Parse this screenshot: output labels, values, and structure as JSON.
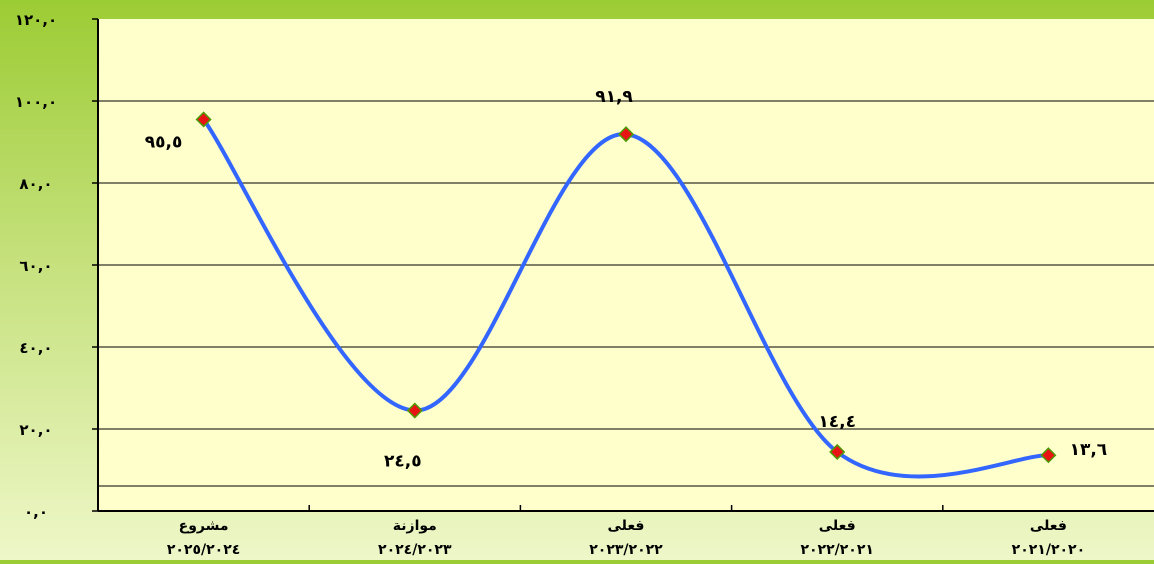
{
  "chart_data": {
    "type": "line",
    "categories": [
      [
        "مشروع",
        "٢٠٢٥/٢٠٢٤"
      ],
      [
        "موازنة",
        "٢٠٢٤/٢٠٢٣"
      ],
      [
        "فعلى",
        "٢٠٢٣/٢٠٢٢"
      ],
      [
        "فعلى",
        "٢٠٢٢/٢٠٢١"
      ],
      [
        "فعلى",
        "٢٠٢١/٢٠٢٠"
      ]
    ],
    "values": [
      95.5,
      24.5,
      91.9,
      14.4,
      13.6
    ],
    "data_labels": [
      "٩٥,٥",
      "٢٤,٥",
      "٩١,٩",
      "١٤,٤",
      "١٣,٦"
    ],
    "ylim": [
      0,
      120
    ],
    "yticks": [
      0,
      20,
      40,
      60,
      80,
      100,
      120
    ],
    "ytick_labels": [
      "٠,٠",
      "٢٠,٠",
      "٤٠,٠",
      "٦٠,٠",
      "٨٠,٠",
      "١٠٠,٠",
      "١٢٠,٠"
    ],
    "grid": true,
    "smooth": true,
    "colors": {
      "line": "#3366ff",
      "marker_fill": "#e81414",
      "marker_stroke": "#4e9a06",
      "plot_background": "#ffffcc",
      "gridline": "#000000"
    }
  }
}
